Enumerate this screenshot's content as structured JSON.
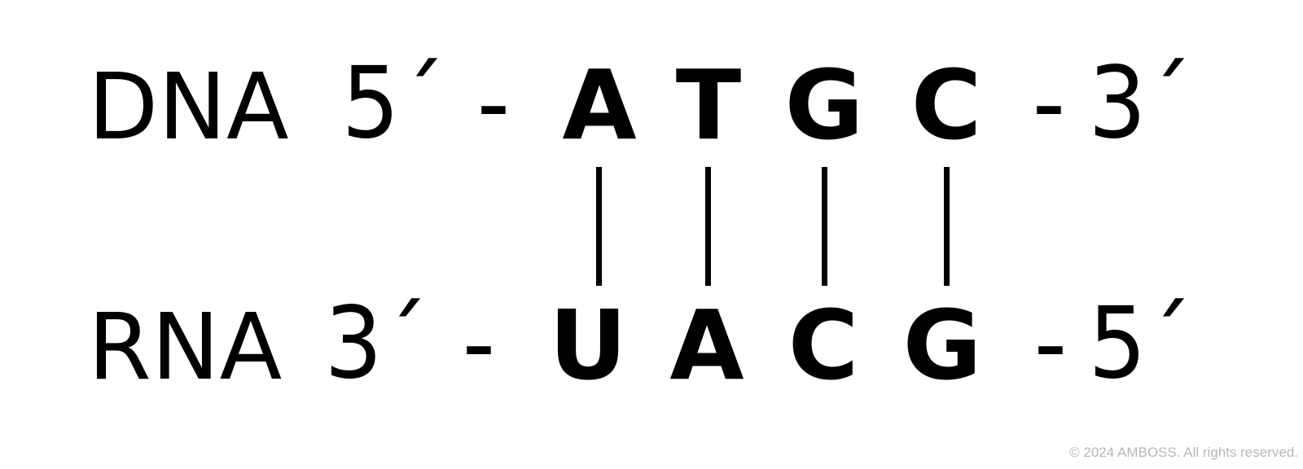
{
  "dna": {
    "label": "DNA",
    "start": "5´",
    "sep_left": "-",
    "bases": [
      "A",
      "T",
      "G",
      "C"
    ],
    "sep_right": "-",
    "end": "3´"
  },
  "rna": {
    "label": "RNA",
    "start": "3´",
    "sep_left": "-",
    "bases": [
      "U",
      "A",
      "C",
      "G"
    ],
    "sep_right": "-",
    "end": "5´"
  },
  "copyright": "© 2024 AMBOSS. All rights reserved."
}
